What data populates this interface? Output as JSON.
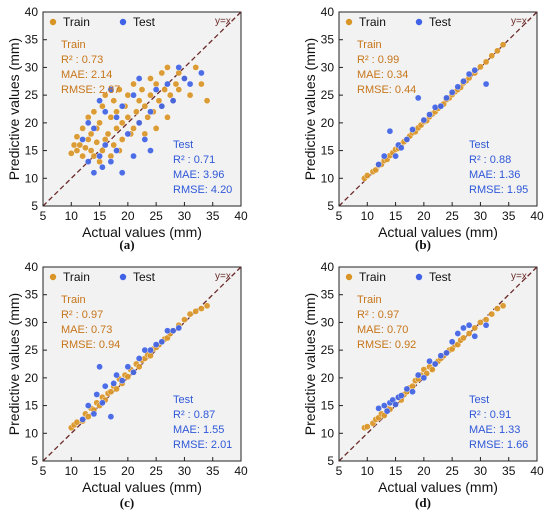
{
  "colors": {
    "train": "#d99526",
    "test": "#3f62e6",
    "train_text": "#c7761a",
    "test_text": "#2f58d8",
    "background": "#f2f2f2",
    "diagonal": "#6b2a2a"
  },
  "chart_data": [
    {
      "type": "scatter",
      "panel": "(a)",
      "xlabel": "Actual values (mm)",
      "ylabel": "Predictive values (mm)",
      "xlim": [
        5,
        40
      ],
      "ylim": [
        5,
        40
      ],
      "xticks": [
        "5",
        "10",
        "15",
        "20",
        "25",
        "30",
        "35",
        "40"
      ],
      "yticks": [
        "5",
        "10",
        "15",
        "20",
        "25",
        "30",
        "35",
        "40"
      ],
      "grid": false,
      "legend": {
        "position": "top-left",
        "entries": [
          "Train",
          "Test"
        ]
      },
      "ref_line_label": "y=x",
      "train_metrics": {
        "title": "Train",
        "r2": "R² : 0.73",
        "mae": "MAE: 2.14",
        "rmse": "RMSE: 2.87"
      },
      "test_metrics": {
        "title": "Test",
        "r2": "R² : 0.71",
        "mae": "MAE: 3.96",
        "rmse": "RMSE: 4.20"
      },
      "series": [
        {
          "name": "Train",
          "x": [
            10,
            10.5,
            11,
            11,
            11.5,
            12,
            12,
            12.5,
            13,
            13,
            13.5,
            13.5,
            14,
            14,
            14.5,
            14.5,
            15,
            15,
            15.5,
            15.5,
            16,
            16,
            16.5,
            17,
            17,
            17.5,
            17.5,
            18,
            18,
            18.5,
            18.5,
            19,
            19,
            19.5,
            20,
            20,
            20.5,
            21,
            21,
            21.5,
            22,
            22,
            22.5,
            23,
            23,
            23.5,
            24,
            24,
            24.5,
            25,
            25,
            25.5,
            26,
            26,
            26.5,
            27,
            27,
            27.5,
            28,
            28.5,
            29,
            29,
            30,
            31,
            32,
            33,
            34
          ],
          "y": [
            14.5,
            16,
            15,
            17.5,
            16,
            14,
            19,
            15.5,
            17,
            21,
            15,
            18,
            14,
            22,
            16.5,
            19,
            13,
            20,
            15,
            23,
            17,
            25,
            18,
            14,
            21,
            16,
            24,
            19,
            22,
            15,
            26,
            20,
            17,
            23,
            21,
            25,
            18,
            19,
            27,
            22,
            24,
            20,
            26,
            18,
            23,
            21,
            28,
            25,
            22,
            27,
            19,
            24,
            29,
            23,
            26,
            30,
            21,
            25,
            24,
            27,
            29,
            26,
            28,
            25,
            30,
            27,
            24
          ],
          "color": "#d99526"
        },
        {
          "name": "Test",
          "x": [
            12,
            13,
            13,
            14,
            14,
            15,
            15,
            15.5,
            16,
            16,
            17,
            17,
            18,
            18,
            19,
            19,
            20,
            21,
            21,
            22,
            22,
            23,
            24,
            24,
            25,
            26,
            27,
            28,
            29,
            30,
            31,
            33
          ],
          "y": [
            17,
            20,
            13,
            19,
            11,
            24,
            14,
            12,
            22,
            16,
            13,
            26,
            21,
            15,
            23,
            11,
            18,
            25,
            14,
            20,
            28,
            17,
            22,
            15,
            26,
            23,
            27,
            24,
            30,
            28,
            27,
            29
          ],
          "color": "#3f62e6"
        }
      ]
    },
    {
      "type": "scatter",
      "panel": "(b)",
      "xlabel": "Actual values (mm)",
      "ylabel": "Predictive values (mm)",
      "xlim": [
        5,
        40
      ],
      "ylim": [
        5,
        40
      ],
      "xticks": [
        "5",
        "10",
        "15",
        "20",
        "25",
        "30",
        "35",
        "40"
      ],
      "yticks": [
        "5",
        "10",
        "15",
        "20",
        "25",
        "30",
        "35",
        "40"
      ],
      "grid": false,
      "legend": {
        "position": "top-left",
        "entries": [
          "Train",
          "Test"
        ]
      },
      "ref_line_label": "y=x",
      "train_metrics": {
        "title": "Train",
        "r2": "R² : 0.99",
        "mae": "MAE: 0.34",
        "rmse": "RMSE: 0.44"
      },
      "test_metrics": {
        "title": "Test",
        "r2": "R² : 0.88",
        "mae": "MAE: 1.36",
        "rmse": "RMSE: 1.95"
      },
      "series": [
        {
          "name": "Train",
          "x": [
            9.5,
            10,
            11,
            11.5,
            12,
            12.5,
            13,
            13.5,
            14,
            14.5,
            15,
            15.5,
            16,
            16.5,
            17,
            17.5,
            18,
            18.5,
            19,
            19.5,
            20,
            20.5,
            21,
            21.5,
            22,
            22.5,
            23,
            23.5,
            24,
            24.5,
            25,
            25.5,
            26,
            26.5,
            27,
            27.5,
            28,
            29,
            30,
            31,
            32,
            33,
            34
          ],
          "y": [
            10,
            10.5,
            11.2,
            11.5,
            12.3,
            12.5,
            13.2,
            13.4,
            14.1,
            14.6,
            15.2,
            15.4,
            16.1,
            16.6,
            17.0,
            17.6,
            18.2,
            18.4,
            19.1,
            19.6,
            20.2,
            20.4,
            21.1,
            21.6,
            22.0,
            22.6,
            23.1,
            23.4,
            24.2,
            24.5,
            25.1,
            25.6,
            26.0,
            26.4,
            27.2,
            27.6,
            28.1,
            29.0,
            30.1,
            31.0,
            32.1,
            33.0,
            34.1
          ],
          "color": "#d99526"
        },
        {
          "name": "Test",
          "x": [
            12,
            13,
            14,
            15,
            15.5,
            16,
            17,
            18,
            19,
            20,
            21,
            22,
            23,
            24,
            25,
            26,
            27,
            28,
            29,
            31
          ],
          "y": [
            12.5,
            14,
            18.5,
            14,
            16,
            15.5,
            17,
            18.8,
            24.5,
            20.5,
            21.5,
            22.8,
            23,
            24.5,
            25.5,
            26.5,
            27.5,
            28.8,
            29.5,
            27
          ],
          "color": "#3f62e6"
        }
      ]
    },
    {
      "type": "scatter",
      "panel": "(c)",
      "xlabel": "Actual values (mm)",
      "ylabel": "Predictive values (mm)",
      "xlim": [
        5,
        40
      ],
      "ylim": [
        5,
        40
      ],
      "xticks": [
        "5",
        "10",
        "15",
        "20",
        "25",
        "30",
        "35",
        "40"
      ],
      "yticks": [
        "5",
        "10",
        "15",
        "20",
        "25",
        "30",
        "35",
        "40"
      ],
      "grid": false,
      "legend": {
        "position": "top-left",
        "entries": [
          "Train",
          "Test"
        ]
      },
      "ref_line_label": "y=x",
      "train_metrics": {
        "title": "Train",
        "r2": "R² : 0.97",
        "mae": "MAE: 0.73",
        "rmse": "RMSE: 0.94"
      },
      "test_metrics": {
        "title": "Test",
        "r2": "R² : 0.87",
        "mae": "MAE: 1.55",
        "rmse": "RMSE: 2.01"
      },
      "series": [
        {
          "name": "Train",
          "x": [
            10,
            10.5,
            11,
            12,
            12.5,
            13,
            13.5,
            14,
            14.5,
            15,
            15.5,
            16,
            16.5,
            17,
            17.5,
            18,
            18.5,
            19,
            19.5,
            20,
            20.5,
            21,
            21.5,
            22,
            22.5,
            23,
            23.5,
            24,
            24.5,
            25,
            25.5,
            26,
            26.5,
            27,
            27.5,
            28,
            29,
            30,
            31,
            32,
            33,
            34
          ],
          "y": [
            11,
            11.5,
            12,
            12.2,
            13.5,
            13,
            14.5,
            14.2,
            15.5,
            15,
            16.5,
            16,
            17.2,
            17.5,
            18.5,
            18,
            19.8,
            19,
            20.5,
            20.2,
            21.5,
            21,
            22.5,
            22,
            23.2,
            23.5,
            24.2,
            24,
            25.2,
            25.5,
            26,
            26.5,
            27,
            27.2,
            28,
            28.5,
            29.5,
            30.5,
            31.5,
            32,
            32.5,
            33
          ],
          "color": "#d99526"
        },
        {
          "name": "Test",
          "x": [
            12,
            13,
            14,
            14.5,
            15,
            15.5,
            16,
            17,
            17.5,
            18,
            19,
            20,
            21,
            22,
            23,
            24,
            25,
            26,
            27,
            28,
            29
          ],
          "y": [
            12.5,
            15,
            13.5,
            17,
            22,
            15.5,
            18.5,
            13,
            19,
            20.5,
            19.5,
            22,
            21,
            23.5,
            25,
            25,
            26,
            26.5,
            28.5,
            28.5,
            29
          ],
          "color": "#3f62e6"
        }
      ]
    },
    {
      "type": "scatter",
      "panel": "(d)",
      "xlabel": "Actual values (mm)",
      "ylabel": "Predictive values (mm)",
      "xlim": [
        5,
        40
      ],
      "ylim": [
        5,
        40
      ],
      "xticks": [
        "5",
        "10",
        "15",
        "20",
        "25",
        "30",
        "35",
        "40"
      ],
      "yticks": [
        "5",
        "10",
        "15",
        "20",
        "25",
        "30",
        "35",
        "40"
      ],
      "grid": false,
      "legend": {
        "position": "top-left",
        "entries": [
          "Train",
          "Test"
        ]
      },
      "ref_line_label": "y=x",
      "train_metrics": {
        "title": "Train",
        "r2": "R² : 0.97",
        "mae": "MAE: 0.70",
        "rmse": "RMSE: 0.92"
      },
      "test_metrics": {
        "title": "Test",
        "r2": "R² : 0.91",
        "mae": "MAE: 1.33",
        "rmse": "RMSE: 1.66"
      },
      "series": [
        {
          "name": "Train",
          "x": [
            9.5,
            10,
            11,
            11.5,
            12,
            12.5,
            13,
            13.5,
            14,
            14.5,
            15,
            15.5,
            16,
            16.5,
            17,
            17.5,
            18,
            18.5,
            19,
            19.5,
            20,
            20.5,
            21,
            21.5,
            22,
            22.5,
            23,
            23.5,
            24,
            24.5,
            25,
            25.5,
            26,
            26.5,
            27,
            28,
            29,
            30,
            31,
            32,
            33,
            34
          ],
          "y": [
            11,
            11.2,
            11.8,
            12.5,
            12.8,
            13.5,
            13.2,
            14.5,
            14.3,
            15.5,
            15.2,
            16.5,
            16,
            17,
            17.5,
            18.2,
            18.5,
            19.5,
            19.8,
            20.5,
            21.5,
            20.8,
            22,
            21.5,
            22.5,
            23,
            23.5,
            24,
            24.5,
            25,
            25.2,
            26,
            26,
            26.8,
            27.2,
            28,
            29,
            30,
            30.5,
            31.5,
            32.5,
            33
          ],
          "color": "#d99526"
        },
        {
          "name": "Test",
          "x": [
            12,
            13,
            13.5,
            14,
            14.5,
            15,
            15.5,
            16,
            17,
            18,
            19,
            20,
            21,
            22,
            23,
            24,
            25,
            26,
            27,
            28,
            29,
            31
          ],
          "y": [
            14.5,
            15,
            14,
            15.5,
            16,
            15.2,
            16.5,
            16.8,
            18,
            17.5,
            20.5,
            20,
            23,
            22.5,
            24,
            24.5,
            26.5,
            28,
            29,
            29.5,
            27.5,
            29.5
          ],
          "color": "#3f62e6"
        }
      ]
    }
  ]
}
